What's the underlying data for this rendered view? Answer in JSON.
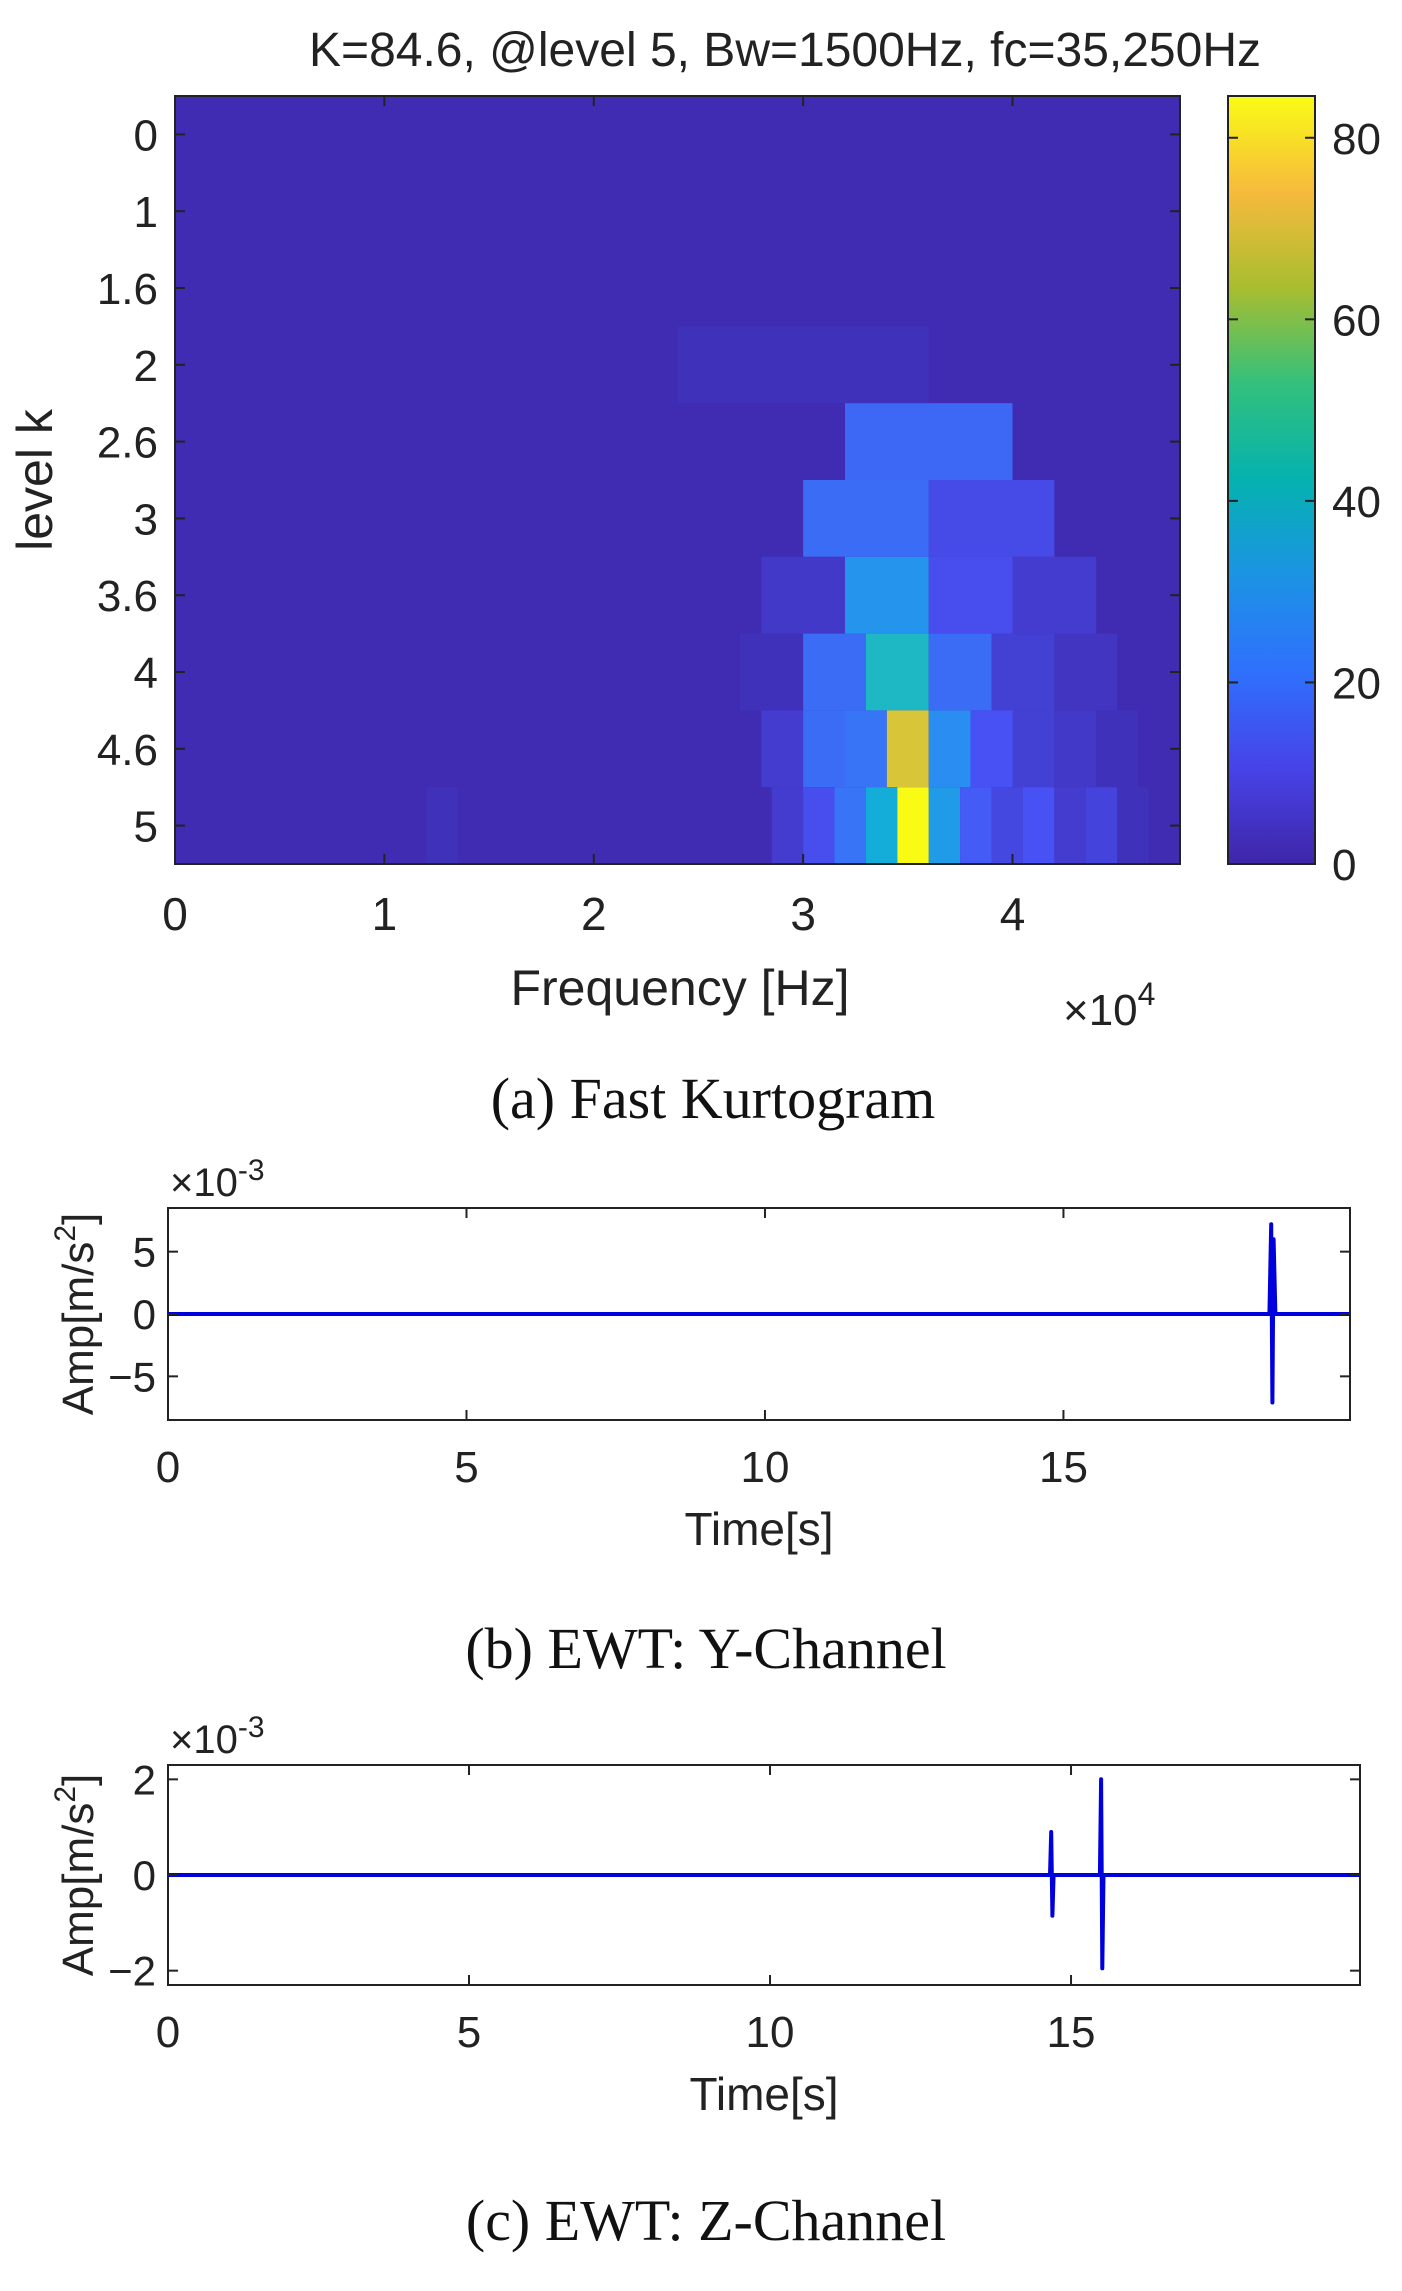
{
  "chart_data": [
    {
      "type": "heatmap",
      "title": "K=84.6, @level 5, Bw=1500Hz, fc=35,250Hz",
      "xlabel": "Frequency [Hz]",
      "ylabel": "level k",
      "x_multiplier": "×10",
      "x_multiplier_exp": "4",
      "xlim": [
        0,
        48000
      ],
      "xticks": [
        0,
        10000,
        20000,
        30000,
        40000
      ],
      "xtick_labels": [
        "0",
        "1",
        "2",
        "3",
        "4"
      ],
      "levels": [
        "0",
        "1",
        "1.6",
        "2",
        "2.6",
        "3",
        "3.6",
        "4",
        "4.6",
        "5"
      ],
      "colorbar": {
        "range": [
          0,
          84.6
        ],
        "ticks": [
          0,
          20,
          40,
          60,
          80
        ],
        "tick_labels": [
          "0",
          "20",
          "40",
          "60",
          "80"
        ],
        "colormap": "parula"
      },
      "background_value": 1.5,
      "cells": [
        {
          "level": "2",
          "f0": 24000,
          "f1": 36000,
          "value": 3
        },
        {
          "level": "2.6",
          "f0": 32000,
          "f1": 40000,
          "value": 17
        },
        {
          "level": "3",
          "f0": 30000,
          "f1": 36000,
          "value": 18
        },
        {
          "level": "3",
          "f0": 36000,
          "f1": 42000,
          "value": 10
        },
        {
          "level": "3.6",
          "f0": 28000,
          "f1": 32000,
          "value": 5
        },
        {
          "level": "3.6",
          "f0": 32000,
          "f1": 36000,
          "value": 28
        },
        {
          "level": "3.6",
          "f0": 36000,
          "f1": 40000,
          "value": 11
        },
        {
          "level": "3.6",
          "f0": 40000,
          "f1": 44000,
          "value": 6
        },
        {
          "level": "4",
          "f0": 27000,
          "f1": 30000,
          "value": 3
        },
        {
          "level": "4",
          "f0": 30000,
          "f1": 33000,
          "value": 18
        },
        {
          "level": "4",
          "f0": 33000,
          "f1": 36000,
          "value": 40
        },
        {
          "level": "4",
          "f0": 36000,
          "f1": 39000,
          "value": 18
        },
        {
          "level": "4",
          "f0": 39000,
          "f1": 42000,
          "value": 7
        },
        {
          "level": "4",
          "f0": 42000,
          "f1": 45000,
          "value": 4
        },
        {
          "level": "4.6",
          "f0": 28000,
          "f1": 30000,
          "value": 6
        },
        {
          "level": "4.6",
          "f0": 30000,
          "f1": 32000,
          "value": 18
        },
        {
          "level": "4.6",
          "f0": 32000,
          "f1": 34000,
          "value": 20
        },
        {
          "level": "4.6",
          "f0": 34000,
          "f1": 36000,
          "value": 67
        },
        {
          "level": "4.6",
          "f0": 36000,
          "f1": 38000,
          "value": 26
        },
        {
          "level": "4.6",
          "f0": 38000,
          "f1": 40000,
          "value": 12
        },
        {
          "level": "4.6",
          "f0": 40000,
          "f1": 42000,
          "value": 7
        },
        {
          "level": "4.6",
          "f0": 42000,
          "f1": 44000,
          "value": 5
        },
        {
          "level": "4.6",
          "f0": 44000,
          "f1": 46000,
          "value": 3
        },
        {
          "level": "5",
          "f0": 12000,
          "f1": 13500,
          "value": 3
        },
        {
          "level": "5",
          "f0": 28500,
          "f1": 30000,
          "value": 6
        },
        {
          "level": "5",
          "f0": 30000,
          "f1": 31500,
          "value": 11
        },
        {
          "level": "5",
          "f0": 31500,
          "f1": 33000,
          "value": 20
        },
        {
          "level": "5",
          "f0": 33000,
          "f1": 34500,
          "value": 35
        },
        {
          "level": "5",
          "f0": 34500,
          "f1": 36000,
          "value": 84.6
        },
        {
          "level": "5",
          "f0": 36000,
          "f1": 37500,
          "value": 30
        },
        {
          "level": "5",
          "f0": 37500,
          "f1": 39000,
          "value": 14
        },
        {
          "level": "5",
          "f0": 39000,
          "f1": 40500,
          "value": 9
        },
        {
          "level": "5",
          "f0": 40500,
          "f1": 42000,
          "value": 12
        },
        {
          "level": "5",
          "f0": 42000,
          "f1": 43500,
          "value": 6
        },
        {
          "level": "5",
          "f0": 43500,
          "f1": 45000,
          "value": 8
        },
        {
          "level": "5",
          "f0": 45000,
          "f1": 46500,
          "value": 3
        }
      ]
    },
    {
      "type": "line",
      "xlabel": "Time[s]",
      "ylabel": "Amp[m/s",
      "ylabel_exp": "2",
      "ylabel_end": "]",
      "y_multiplier": "×10",
      "y_multiplier_exp": "-3",
      "xlim": [
        0,
        19.8
      ],
      "ylim": [
        -0.0085,
        0.0085
      ],
      "xticks": [
        0,
        5,
        10,
        15
      ],
      "xtick_labels": [
        "0",
        "5",
        "10",
        "15"
      ],
      "yticks": [
        -0.005,
        0,
        0.005
      ],
      "ytick_labels": [
        "−5",
        "0",
        "5"
      ],
      "series": [
        {
          "name": "Y-Channel",
          "color": "#0000dd",
          "x": [
            0,
            18.45,
            18.48,
            18.5,
            18.52,
            18.55,
            19.8
          ],
          "y": [
            0,
            0,
            0.0072,
            -0.0071,
            0.006,
            0,
            0
          ]
        }
      ]
    },
    {
      "type": "line",
      "xlabel": "Time[s]",
      "ylabel": "Amp[m/s",
      "ylabel_exp": "2",
      "ylabel_end": "]",
      "y_multiplier": "×10",
      "y_multiplier_exp": "-3",
      "xlim": [
        0,
        19.8
      ],
      "ylim": [
        -2.3,
        2.3
      ],
      "xticks": [
        0,
        5,
        10,
        15
      ],
      "xtick_labels": [
        "0",
        "5",
        "10",
        "15"
      ],
      "yticks": [
        -2,
        0,
        2
      ],
      "ytick_labels": [
        "−2",
        "0",
        "2"
      ],
      "series": [
        {
          "name": "Z-Channel",
          "color": "#0000dd",
          "x": [
            0,
            14.65,
            14.67,
            14.69,
            14.71,
            15.48,
            15.5,
            15.52,
            15.54,
            19.8
          ],
          "y": [
            0,
            0,
            0.9,
            -0.85,
            0,
            0,
            2.0,
            -1.95,
            0,
            0
          ]
        }
      ]
    }
  ],
  "captions": [
    "(a) Fast Kurtogram",
    "(b) EWT: Y-Channel",
    "(c) EWT: Z-Channel"
  ]
}
